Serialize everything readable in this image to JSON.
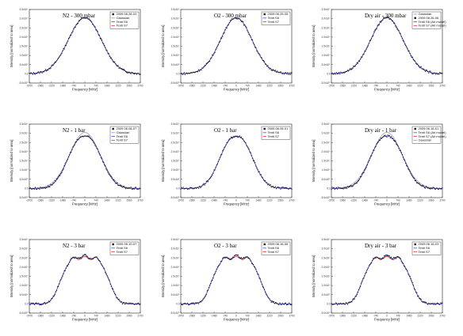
{
  "figure": {
    "xlabel": "Frequency [MHz]",
    "ylabel": "Intensity [normalized to area]",
    "x_ticks": [
      "-3700",
      "-2960",
      "-2220",
      "-1480",
      "-740",
      "0",
      "740",
      "1480",
      "2220",
      "2960",
      "3700"
    ],
    "y_ticks": [
      "-5.0x10⁵",
      "0.0",
      "5.0x10⁵",
      "1.0x10⁴",
      "1.5x10⁴",
      "2.0x10⁴",
      "2.5x10⁴",
      "3.0x10⁴",
      "3.5x10⁴"
    ],
    "colors": {
      "measured": "#1a1a1a",
      "tenti_s6": "#3355ee",
      "tenti_s7": "#ee3333",
      "gaussian": "#999999"
    }
  },
  "chart_data": [
    {
      "type": "line",
      "title": "N2 - 300 mbar",
      "shape": "gauss",
      "width": 1100,
      "series": [
        {
          "name": "2009.06.26-03",
          "kind": "measured"
        },
        {
          "name": "Gaussian",
          "kind": "gaussian"
        },
        {
          "name": "Tenti S6",
          "kind": "tenti_s6"
        },
        {
          "name": "Tenti S7",
          "kind": "tenti_s7"
        }
      ],
      "xlim": [
        -3700,
        3700
      ],
      "ylim": [
        -5e-05,
        0.00035
      ]
    },
    {
      "type": "line",
      "title": "O2 - 300 mbar",
      "shape": "gauss",
      "width": 1050,
      "series": [
        {
          "name": "2009.06.25-05",
          "kind": "measured"
        },
        {
          "name": "Tenti S6",
          "kind": "tenti_s6"
        },
        {
          "name": "Tenti S7",
          "kind": "tenti_s7"
        }
      ],
      "xlim": [
        -3700,
        3700
      ],
      "ylim": [
        -5e-05,
        0.00035
      ]
    },
    {
      "type": "line",
      "title": "Dry air - 300 mbar",
      "shape": "gauss",
      "width": 1080,
      "series": [
        {
          "name": "Gaussian",
          "kind": "gaussian"
        },
        {
          "name": "2009.06.26-06",
          "kind": "measured"
        },
        {
          "name": "Tenti S6 (Air model)",
          "kind": "tenti_s6"
        },
        {
          "name": "Tenti S7 (Air model)",
          "kind": "tenti_s7"
        }
      ],
      "xlim": [
        -3700,
        3700
      ],
      "ylim": [
        -5e-05,
        0.00035
      ]
    },
    {
      "type": "line",
      "title": "N2 - 1 bar",
      "shape": "broad",
      "width": 1000,
      "series": [
        {
          "name": "2009.06.08-07",
          "kind": "measured"
        },
        {
          "name": "Gaussian",
          "kind": "gaussian"
        },
        {
          "name": "Tenti S6",
          "kind": "tenti_s6"
        },
        {
          "name": "Tenti S7",
          "kind": "tenti_s7"
        }
      ],
      "xlim": [
        -3700,
        3700
      ],
      "ylim": [
        -5e-05,
        0.00035
      ]
    },
    {
      "type": "line",
      "title": "O2 - 1 bar",
      "shape": "broad",
      "width": 980,
      "series": [
        {
          "name": "2009.06.05-01",
          "kind": "measured"
        },
        {
          "name": "Tenti S6",
          "kind": "tenti_s6"
        },
        {
          "name": "Tenti S7",
          "kind": "tenti_s7"
        }
      ],
      "xlim": [
        -3700,
        3700
      ],
      "ylim": [
        -5e-05,
        0.00035
      ]
    },
    {
      "type": "line",
      "title": "Dry air - 1 bar",
      "shape": "broad",
      "width": 1000,
      "series": [
        {
          "name": "2009.06.16-01",
          "kind": "measured"
        },
        {
          "name": "Tenti S6 (Air model)",
          "kind": "tenti_s6"
        },
        {
          "name": "Tenti S7 (Air model)",
          "kind": "tenti_s7"
        },
        {
          "name": "Gaussian",
          "kind": "gaussian"
        }
      ],
      "xlim": [
        -3700,
        3700
      ],
      "ylim": [
        -5e-05,
        0.00035
      ]
    },
    {
      "type": "line",
      "title": "N2 - 3 bar",
      "shape": "triplet",
      "width": 950,
      "series": [
        {
          "name": "2009.06.10-07",
          "kind": "measured"
        },
        {
          "name": "Tenti S6",
          "kind": "tenti_s6"
        },
        {
          "name": "Tenti S7",
          "kind": "tenti_s7"
        }
      ],
      "xlim": [
        -3700,
        3700
      ],
      "ylim": [
        -5e-05,
        0.00035
      ]
    },
    {
      "type": "line",
      "title": "O2 - 3 bar",
      "shape": "triplet",
      "width": 950,
      "series": [
        {
          "name": "2009.06.16-06",
          "kind": "measured"
        },
        {
          "name": "Tenti S6",
          "kind": "tenti_s6"
        },
        {
          "name": "Tenti S7",
          "kind": "tenti_s7"
        }
      ],
      "xlim": [
        -3700,
        3700
      ],
      "ylim": [
        -5e-05,
        0.00035
      ]
    },
    {
      "type": "line",
      "title": "Dry air - 3 bar",
      "shape": "triplet",
      "width": 950,
      "series": [
        {
          "name": "2009.06.16-03",
          "kind": "measured"
        },
        {
          "name": "Tenti S6",
          "kind": "tenti_s6"
        },
        {
          "name": "Tenti S7",
          "kind": "tenti_s7"
        }
      ],
      "xlim": [
        -3700,
        3700
      ],
      "ylim": [
        -5e-05,
        0.00035
      ]
    }
  ]
}
